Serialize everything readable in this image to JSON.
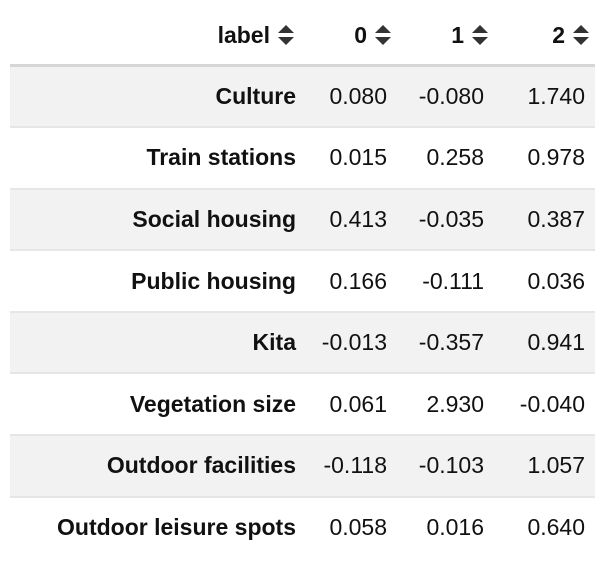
{
  "table": {
    "columns": [
      {
        "label": "label",
        "icon": "sort-icon"
      },
      {
        "label": "0",
        "icon": "sort-icon"
      },
      {
        "label": "1",
        "icon": "sort-icon"
      },
      {
        "label": "2",
        "icon": "sort-icon"
      }
    ],
    "rows": [
      {
        "label": "Culture",
        "values": [
          "0.080",
          "-0.080",
          "1.740"
        ]
      },
      {
        "label": "Train stations",
        "values": [
          "0.015",
          "0.258",
          "0.978"
        ]
      },
      {
        "label": "Social housing",
        "values": [
          "0.413",
          "-0.035",
          "0.387"
        ]
      },
      {
        "label": "Public housing",
        "values": [
          "0.166",
          "-0.111",
          "0.036"
        ]
      },
      {
        "label": "Kita",
        "values": [
          "-0.013",
          "-0.357",
          "0.941"
        ]
      },
      {
        "label": "Vegetation size",
        "values": [
          "0.061",
          "2.930",
          "-0.040"
        ]
      },
      {
        "label": "Outdoor facilities",
        "values": [
          "-0.118",
          "-0.103",
          "1.057"
        ]
      },
      {
        "label": "Outdoor leisure spots",
        "values": [
          "0.058",
          "0.016",
          "0.640"
        ]
      }
    ]
  }
}
